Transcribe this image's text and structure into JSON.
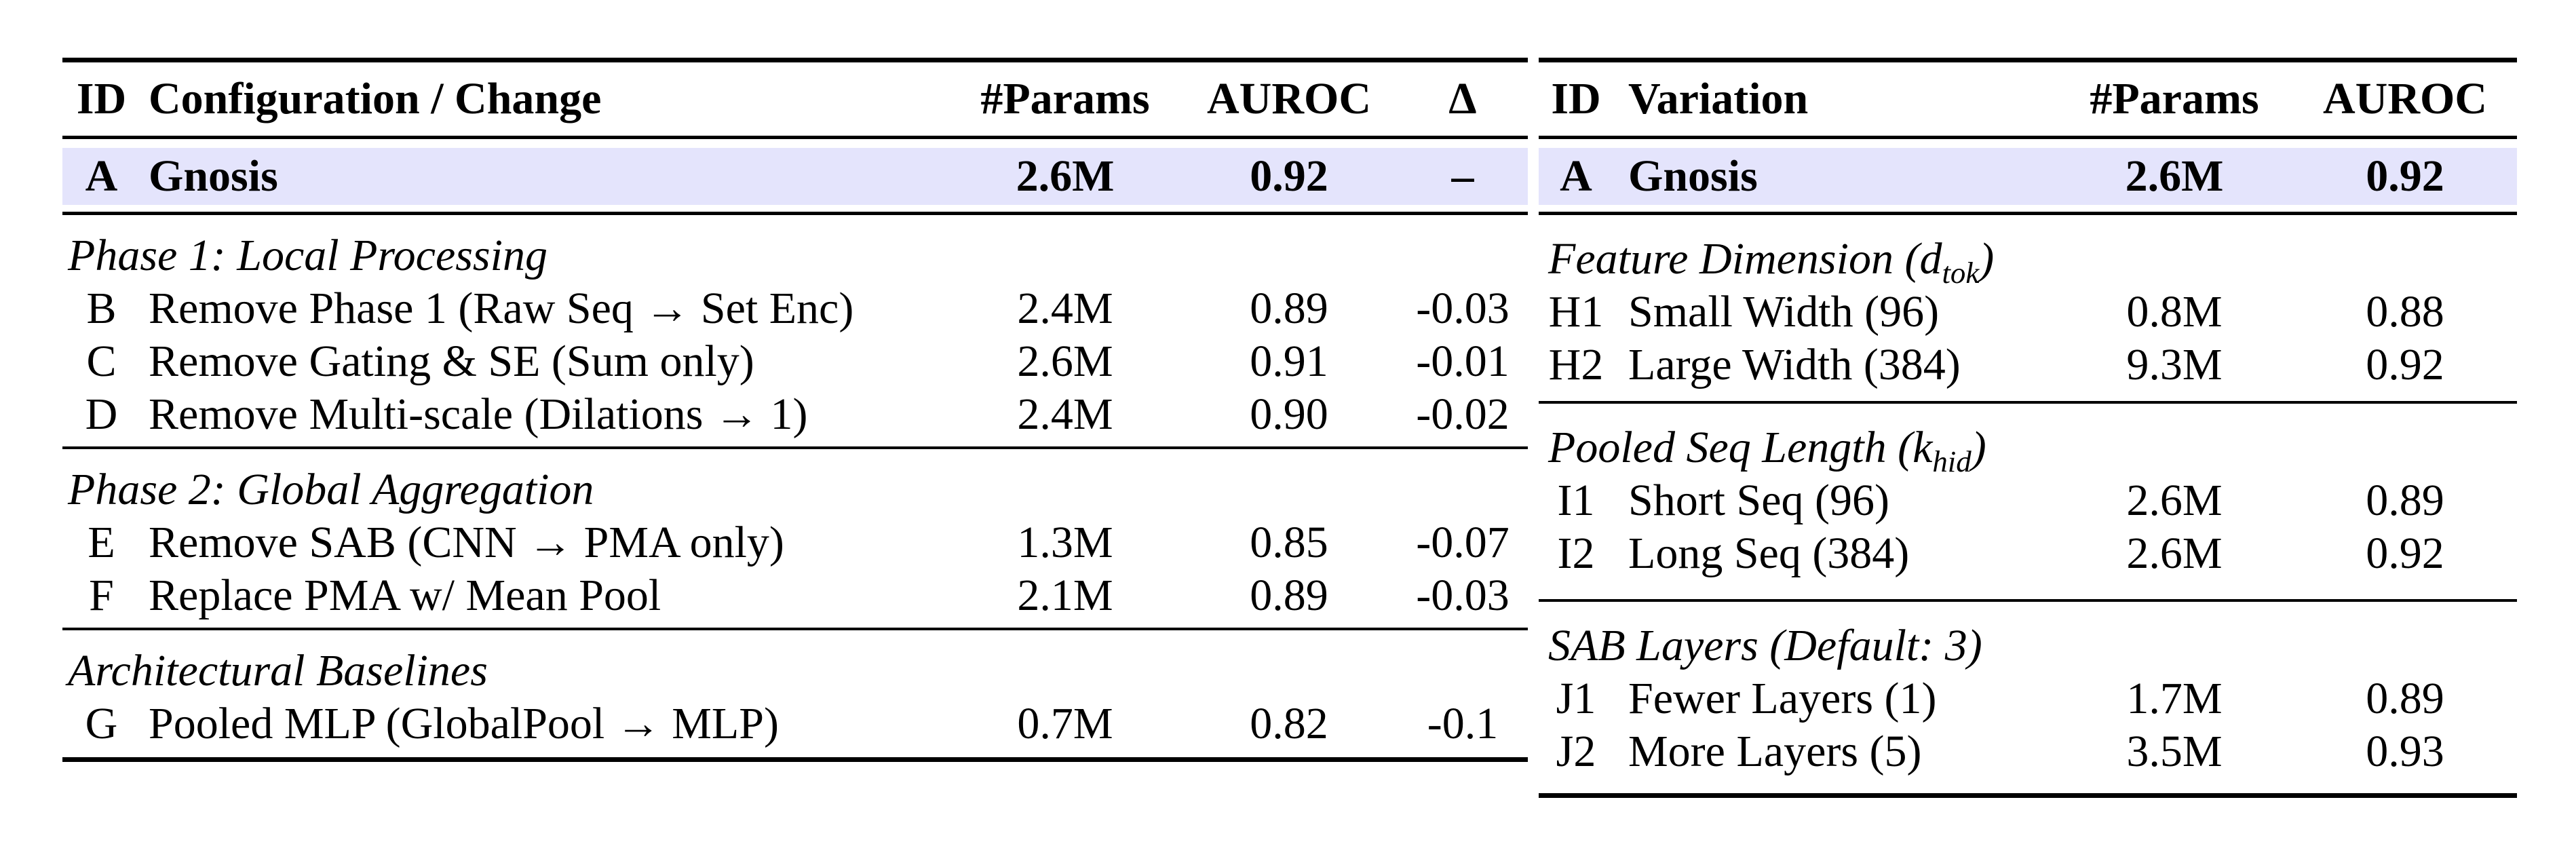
{
  "colors": {
    "highlight_row_bg": "#e4e4fc",
    "rule_color": "#000000"
  },
  "left_table": {
    "headers": [
      "ID",
      "Configuration / Change",
      "#Params",
      "AUROC",
      "Δ"
    ],
    "baseline_row": {
      "id": "A",
      "name": "Gnosis",
      "params": "2.6M",
      "auroc": "0.92",
      "delta": "–"
    },
    "sections": [
      {
        "label": "Phase 1: Local Processing",
        "rows": [
          {
            "id": "B",
            "name": "Remove Phase 1 (Raw Seq → Set Enc)",
            "params": "2.4M",
            "auroc": "0.89",
            "delta": "-0.03"
          },
          {
            "id": "C",
            "name": "Remove Gating & SE (Sum only)",
            "params": "2.6M",
            "auroc": "0.91",
            "delta": "-0.01"
          },
          {
            "id": "D",
            "name": "Remove Multi-scale (Dilations → 1)",
            "params": "2.4M",
            "auroc": "0.90",
            "delta": "-0.02"
          }
        ]
      },
      {
        "label": "Phase 2: Global Aggregation",
        "rows": [
          {
            "id": "E",
            "name": "Remove SAB (CNN → PMA only)",
            "params": "1.3M",
            "auroc": "0.85",
            "delta": "-0.07"
          },
          {
            "id": "F",
            "name": "Replace PMA w/ Mean Pool",
            "params": "2.1M",
            "auroc": "0.89",
            "delta": "-0.03"
          }
        ]
      },
      {
        "label": "Architectural Baselines",
        "rows": [
          {
            "id": "G",
            "name": "Pooled MLP (GlobalPool → MLP)",
            "params": "0.7M",
            "auroc": "0.82",
            "delta": "-0.1"
          }
        ]
      }
    ]
  },
  "right_table": {
    "headers": [
      "ID",
      "Variation",
      "#Params",
      "AUROC"
    ],
    "baseline_row": {
      "id": "A",
      "name": "Gnosis",
      "params": "2.6M",
      "auroc": "0.92"
    },
    "sections": [
      {
        "label_prefix": "Feature Dimension (",
        "label_var": "d",
        "label_sub": "tok",
        "label_suffix": ")",
        "rows": [
          {
            "id": "H1",
            "name": "Small Width (96)",
            "params": "0.8M",
            "auroc": "0.88"
          },
          {
            "id": "H2",
            "name": "Large Width (384)",
            "params": "9.3M",
            "auroc": "0.92"
          }
        ]
      },
      {
        "label_prefix": "Pooled Seq Length (",
        "label_var": "k",
        "label_sub": "hid",
        "label_suffix": ")",
        "rows": [
          {
            "id": "I1",
            "name": "Short Seq (96)",
            "params": "2.6M",
            "auroc": "0.89"
          },
          {
            "id": "I2",
            "name": "Long Seq (384)",
            "params": "2.6M",
            "auroc": "0.92"
          }
        ]
      },
      {
        "label": "SAB Layers (Default: 3)",
        "rows": [
          {
            "id": "J1",
            "name": "Fewer Layers (1)",
            "params": "1.7M",
            "auroc": "0.89"
          },
          {
            "id": "J2",
            "name": "More Layers (5)",
            "params": "3.5M",
            "auroc": "0.93"
          }
        ]
      }
    ]
  }
}
